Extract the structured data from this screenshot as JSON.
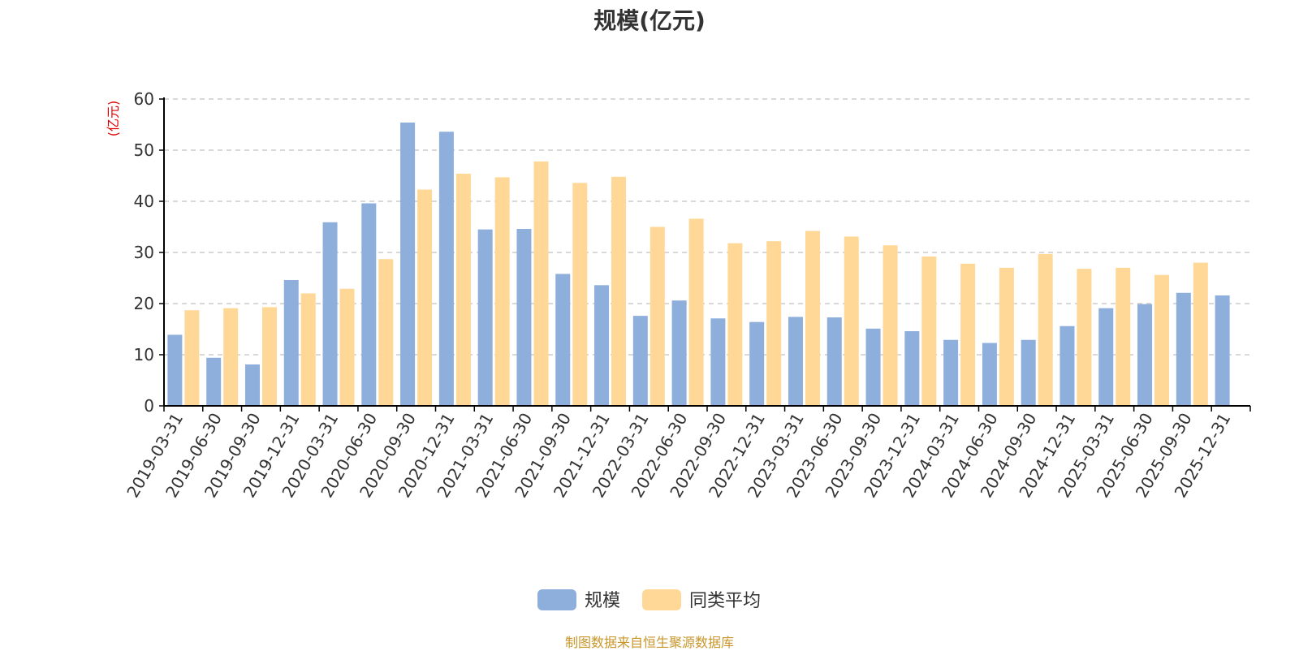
{
  "colors": {
    "series1": "#8eaedc",
    "series2": "#ffd898",
    "unit_label": "#e00000",
    "footer": "#c8962a",
    "axis": "#000000",
    "grid": "#cccccc"
  },
  "footer_text": "制图数据来自恒生聚源数据库",
  "chart_data": {
    "type": "bar",
    "title": "规模(亿元)",
    "ylabel": "(亿元)",
    "xlabel": "",
    "ylim": [
      0,
      60
    ],
    "yticks": [
      0,
      10,
      20,
      30,
      40,
      50,
      60
    ],
    "grid": true,
    "legend_position": "bottom",
    "categories": [
      "2019-03-31",
      "2019-06-30",
      "2019-09-30",
      "2019-12-31",
      "2020-03-31",
      "2020-06-30",
      "2020-09-30",
      "2020-12-31",
      "2021-03-31",
      "2021-06-30",
      "2021-09-30",
      "2021-12-31",
      "2022-03-31",
      "2022-06-30",
      "2022-09-30",
      "2022-12-31",
      "2023-03-31",
      "2023-06-30",
      "2023-09-30",
      "2023-12-31",
      "2024-03-31",
      "2024-06-30",
      "2024-09-30",
      "2024-12-31",
      "2025-03-31",
      "2025-06-30",
      "2025-09-30",
      "2025-12-31"
    ],
    "series": [
      {
        "name": "规模",
        "values": [
          13.9,
          9.4,
          8.1,
          24.6,
          35.9,
          39.6,
          55.4,
          53.6,
          34.5,
          34.6,
          25.8,
          23.6,
          17.6,
          20.6,
          17.1,
          16.4,
          17.4,
          17.3,
          15.1,
          14.6,
          12.9,
          12.3,
          12.9,
          15.6,
          19.1,
          19.9,
          22.1,
          21.6
        ]
      },
      {
        "name": "同类平均",
        "values": [
          18.7,
          19.1,
          19.3,
          22.0,
          22.9,
          28.7,
          42.3,
          45.4,
          44.7,
          47.8,
          43.6,
          44.8,
          35.0,
          36.6,
          31.8,
          32.2,
          34.2,
          33.1,
          31.4,
          29.2,
          27.8,
          27.0,
          29.7,
          26.8,
          27.0,
          25.6,
          28.0,
          null
        ]
      }
    ]
  }
}
